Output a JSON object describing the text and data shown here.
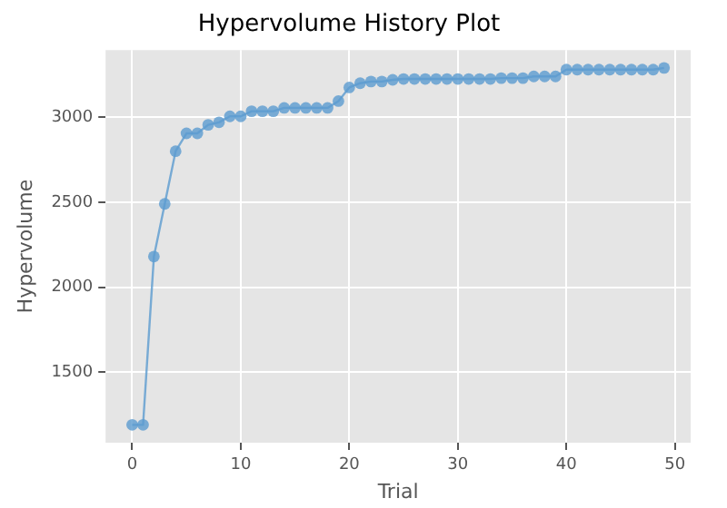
{
  "chart_data": {
    "type": "line",
    "title": "Hypervolume History Plot",
    "xlabel": "Trial",
    "ylabel": "Hypervolume",
    "x": [
      0,
      1,
      2,
      3,
      4,
      5,
      6,
      7,
      8,
      9,
      10,
      11,
      12,
      13,
      14,
      15,
      16,
      17,
      18,
      19,
      20,
      21,
      22,
      23,
      24,
      25,
      26,
      27,
      28,
      29,
      30,
      31,
      32,
      33,
      34,
      35,
      36,
      37,
      38,
      39,
      40,
      41,
      42,
      43,
      44,
      45,
      46,
      47,
      48,
      49
    ],
    "series": [
      {
        "color": "#5b9bd0",
        "values": [
          1190,
          1190,
          2180,
          2490,
          2800,
          2905,
          2905,
          2955,
          2970,
          3005,
          3005,
          3035,
          3035,
          3035,
          3055,
          3055,
          3055,
          3055,
          3055,
          3095,
          3175,
          3200,
          3210,
          3210,
          3220,
          3225,
          3225,
          3225,
          3225,
          3225,
          3225,
          3225,
          3225,
          3225,
          3230,
          3230,
          3230,
          3240,
          3240,
          3240,
          3280,
          3280,
          3280,
          3280,
          3280,
          3280,
          3280,
          3280,
          3280,
          3290
        ]
      }
    ],
    "xlim": [
      -2.45,
      51.45
    ],
    "ylim": [
      1085,
      3395
    ],
    "xticks": [
      0,
      10,
      20,
      30,
      40,
      50
    ],
    "yticks": [
      1500,
      2000,
      2500,
      3000
    ],
    "grid": true,
    "legend": false,
    "marker": "circle",
    "line_style": "solid"
  }
}
